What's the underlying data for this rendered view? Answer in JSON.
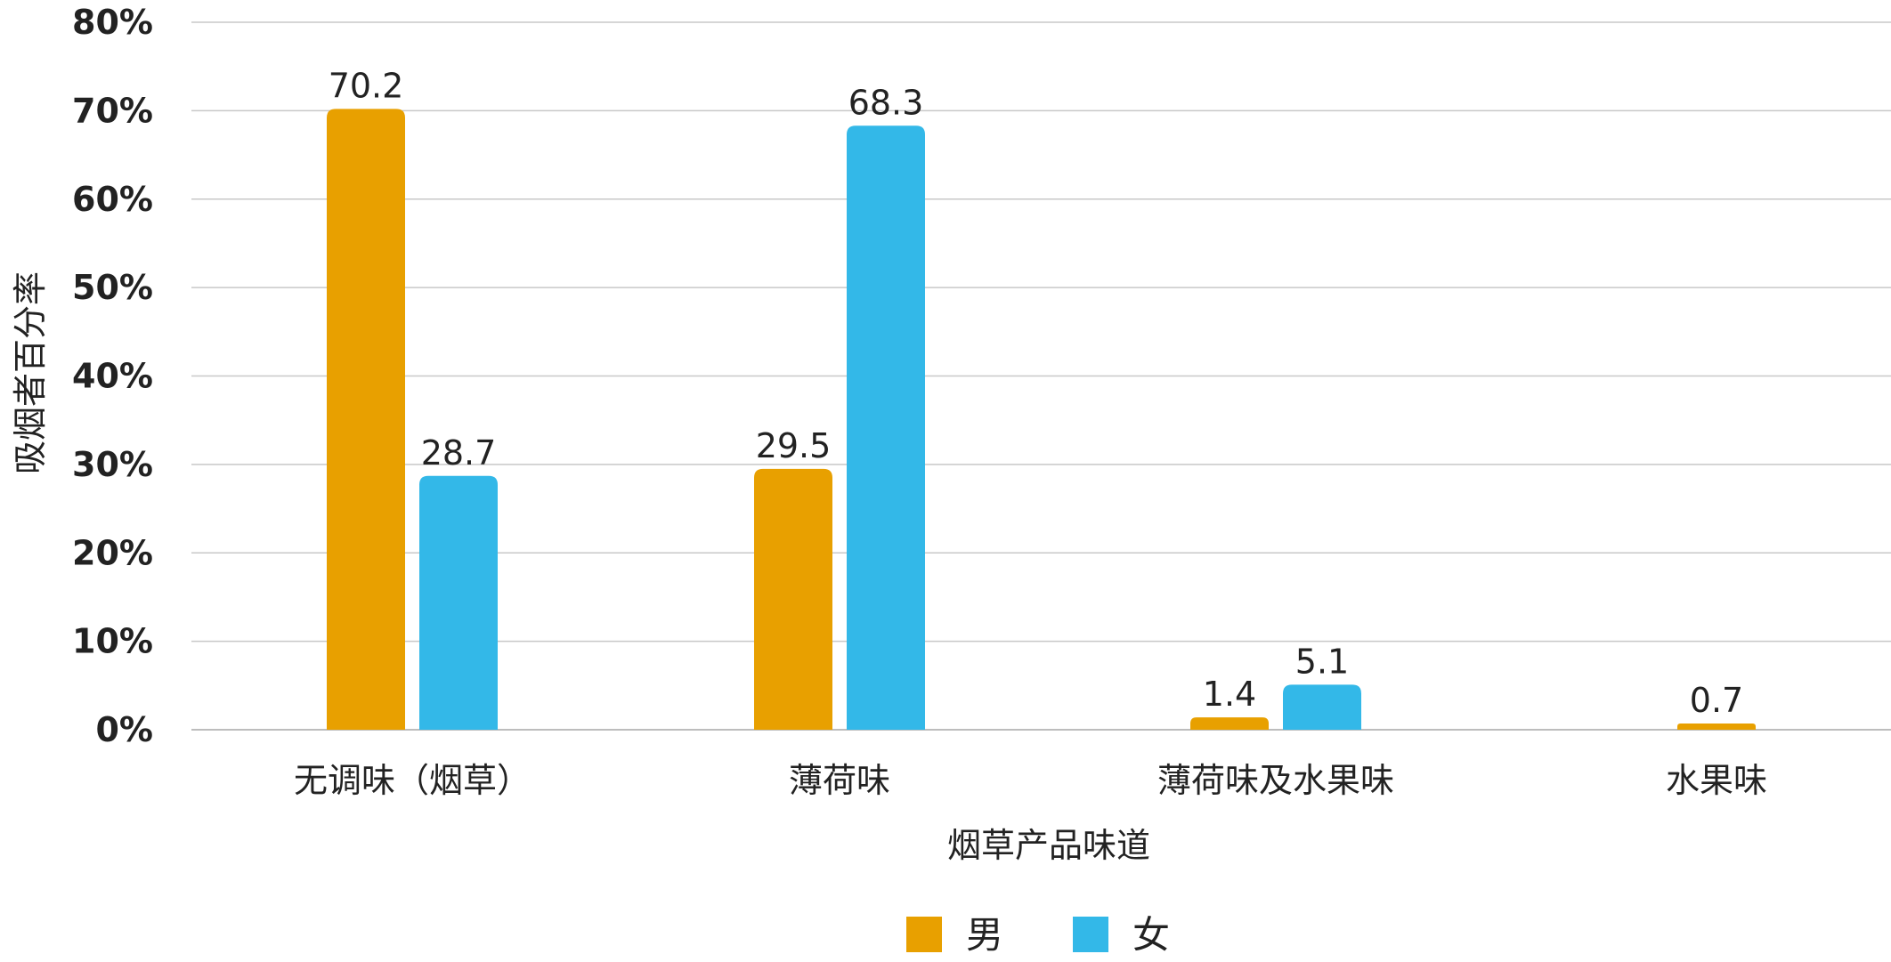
{
  "chart_data": {
    "type": "bar",
    "categories": [
      "无调味（烟草）",
      "薄荷味",
      "薄荷味及水果味",
      "水果味"
    ],
    "series": [
      {
        "name": "男",
        "color": "#e8a000",
        "values": [
          70.2,
          29.5,
          1.4,
          0.7
        ]
      },
      {
        "name": "女",
        "color": "#33b8e8",
        "values": [
          28.7,
          68.3,
          5.1,
          null
        ]
      }
    ],
    "value_labels": [
      [
        "70.2",
        "29.5",
        "1.4",
        "0.7"
      ],
      [
        "28.7",
        "68.3",
        "5.1",
        ""
      ]
    ],
    "xlabel": "烟草产品味道",
    "ylabel": "吸烟者百分率",
    "ylim": [
      0,
      80
    ],
    "yticks": [
      0,
      10,
      20,
      30,
      40,
      50,
      60,
      70,
      80
    ],
    "ytick_labels": [
      "0%",
      "10%",
      "20%",
      "30%",
      "40%",
      "50%",
      "60%",
      "70%",
      "80%"
    ],
    "grid": true,
    "legend_position": "bottom-center"
  }
}
